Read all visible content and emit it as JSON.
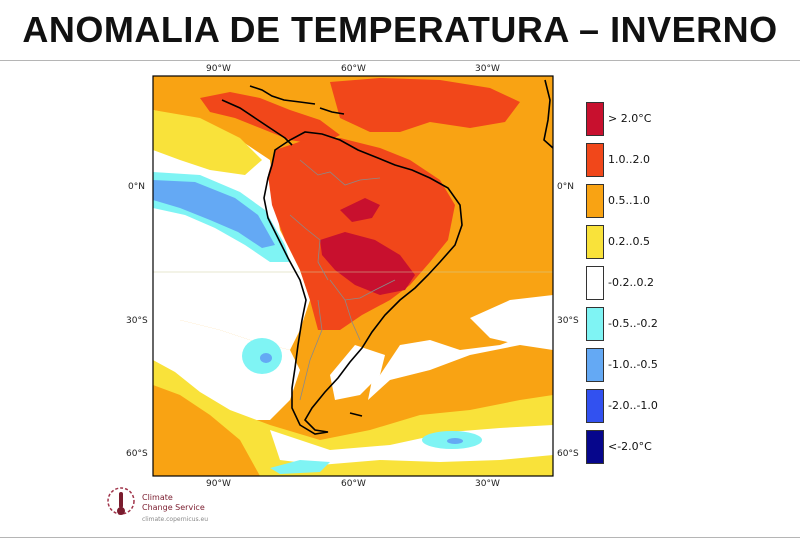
{
  "title": "ANOMALIA DE TEMPERATURA – INVERNO",
  "map": {
    "lon_labels": [
      "90°W",
      "60°W",
      "30°W"
    ],
    "lat_labels": [
      "0°N",
      "30°S",
      "60°S"
    ]
  },
  "legend": [
    {
      "label": "> 2.0°C",
      "color": "#c8102e"
    },
    {
      "label": "1.0..2.0",
      "color": "#f1471a"
    },
    {
      "label": "0.5..1.0",
      "color": "#f9a313"
    },
    {
      "label": "0.2..0.5",
      "color": "#f9e23a"
    },
    {
      "label": "-0.2..0.2",
      "color": "#ffffff"
    },
    {
      "label": "-0.5..-0.2",
      "color": "#7ff4f4"
    },
    {
      "label": "-1.0..-0.5",
      "color": "#64a9f4"
    },
    {
      "label": "-2.0..-1.0",
      "color": "#3251f0"
    },
    {
      "label": "<-2.0°C",
      "color": "#06068c"
    }
  ],
  "logo": {
    "line1": "Climate",
    "line2": "Change Service",
    "line3": "climate.copernicus.eu"
  }
}
